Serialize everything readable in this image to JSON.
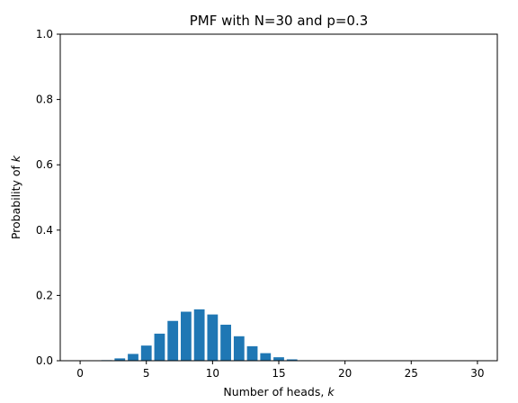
{
  "chart_data": {
    "type": "bar",
    "title": "PMF with N=30 and p=0.3",
    "xlabel_prefix": "Number of heads, ",
    "xlabel_var": "k",
    "ylabel_prefix": "Probability of ",
    "ylabel_var": "k",
    "x": [
      0,
      1,
      2,
      3,
      4,
      5,
      6,
      7,
      8,
      9,
      10,
      11,
      12,
      13,
      14,
      15,
      16,
      17,
      18,
      19,
      20,
      21,
      22,
      23,
      24,
      25,
      26,
      27,
      28,
      29,
      30
    ],
    "values": [
      2e-05,
      0.00027,
      0.0018,
      0.0072,
      0.0208,
      0.0464,
      0.0829,
      0.1219,
      0.1501,
      0.1573,
      0.1416,
      0.1103,
      0.0749,
      0.0444,
      0.0231,
      0.0106,
      0.0042,
      0.0015,
      0.0005,
      0.0001,
      3e-05,
      1e-05,
      0,
      0,
      0,
      0,
      0,
      0,
      0,
      0,
      0
    ],
    "xlim": [
      -1.5,
      31.5
    ],
    "ylim": [
      0,
      1.0
    ],
    "xticks": [
      0,
      5,
      10,
      15,
      20,
      25,
      30
    ],
    "xtick_labels": [
      "0",
      "5",
      "10",
      "15",
      "20",
      "25",
      "30"
    ],
    "yticks": [
      0,
      0.2,
      0.4,
      0.6,
      0.8,
      1.0
    ],
    "ytick_labels": [
      "0.0",
      "0.2",
      "0.4",
      "0.6",
      "0.8",
      "1.0"
    ],
    "bar_color": "#1f77b4",
    "grid": false,
    "legend": "none"
  }
}
